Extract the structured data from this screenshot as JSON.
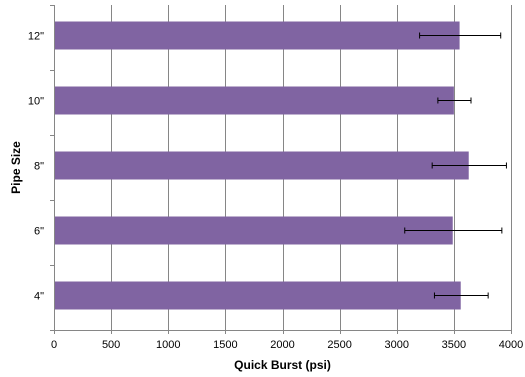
{
  "chart_data": {
    "type": "bar",
    "orientation": "horizontal",
    "categories": [
      "4\"",
      "6\"",
      "8\"",
      "10\"",
      "12\""
    ],
    "series": [
      {
        "values": [
          3560,
          3490,
          3630,
          3500,
          3550
        ],
        "error_low": [
          3330,
          3070,
          3310,
          3360,
          3200
        ],
        "error_high": [
          3800,
          3920,
          3960,
          3650,
          3910
        ]
      }
    ],
    "xlabel": "Quick Burst (psi)",
    "ylabel": "Pipe Size",
    "xlim": [
      0,
      4000
    ],
    "x_ticks": [
      0,
      500,
      1000,
      1500,
      2000,
      2500,
      3000,
      3500,
      4000
    ],
    "grid": "vertical",
    "legend": "none",
    "bar_color": "#8064a2",
    "grid_color": "#868686"
  }
}
